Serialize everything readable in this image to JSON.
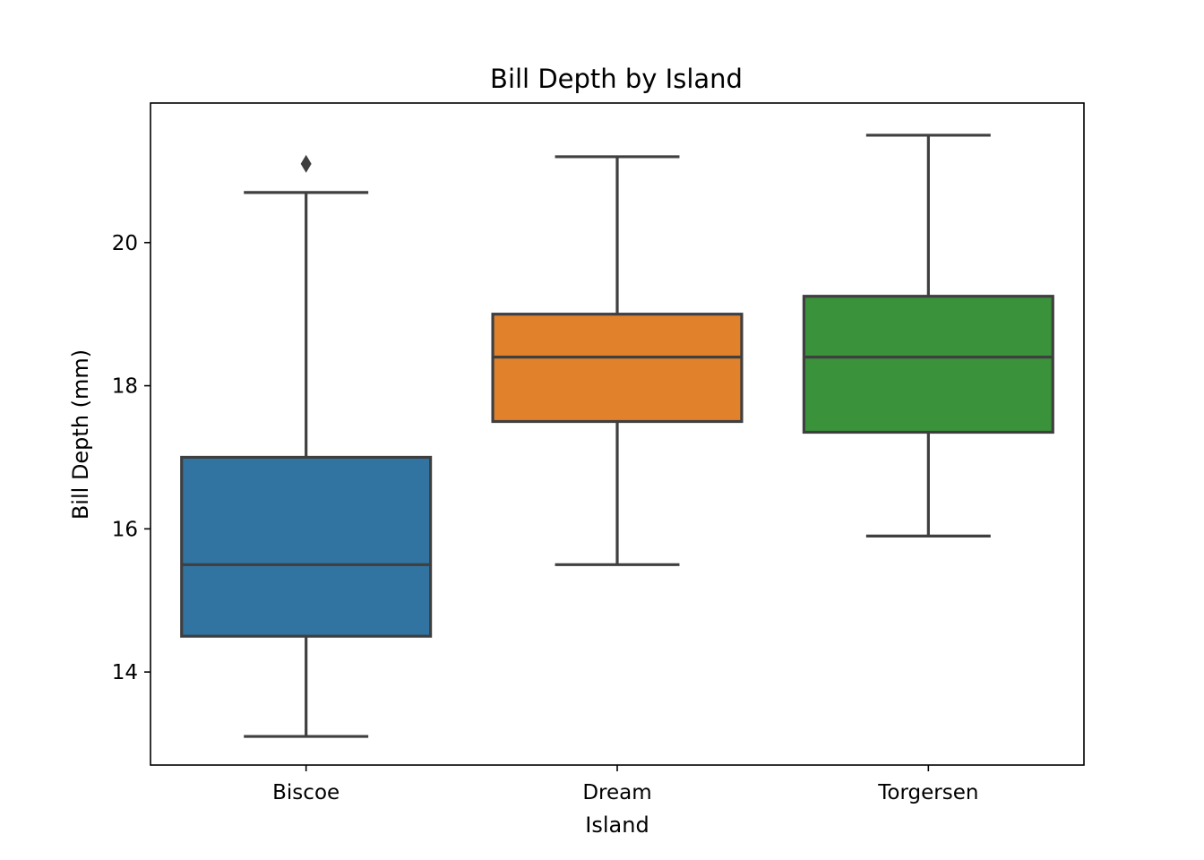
{
  "chart_data": {
    "type": "box",
    "title": "Bill Depth by Island",
    "xlabel": "Island",
    "ylabel": "Bill Depth (mm)",
    "categories": [
      "Biscoe",
      "Dream",
      "Torgersen"
    ],
    "ylim": [
      12.7,
      21.95
    ],
    "yticks": [
      14,
      16,
      18,
      20
    ],
    "grid": false,
    "boxes": [
      {
        "category": "Biscoe",
        "whisker_low": 13.1,
        "q1": 14.5,
        "median": 15.5,
        "q3": 17.0,
        "whisker_high": 20.7,
        "outliers": [
          21.1
        ],
        "color": "#3274a1"
      },
      {
        "category": "Dream",
        "whisker_low": 15.5,
        "q1": 17.5,
        "median": 18.4,
        "q3": 19.0,
        "whisker_high": 21.2,
        "outliers": [],
        "color": "#e1812c"
      },
      {
        "category": "Torgersen",
        "whisker_low": 15.9,
        "q1": 17.35,
        "median": 18.4,
        "q3": 19.25,
        "whisker_high": 21.5,
        "outliers": [],
        "color": "#3a923a"
      }
    ],
    "line_color": "#3f3f3f"
  }
}
